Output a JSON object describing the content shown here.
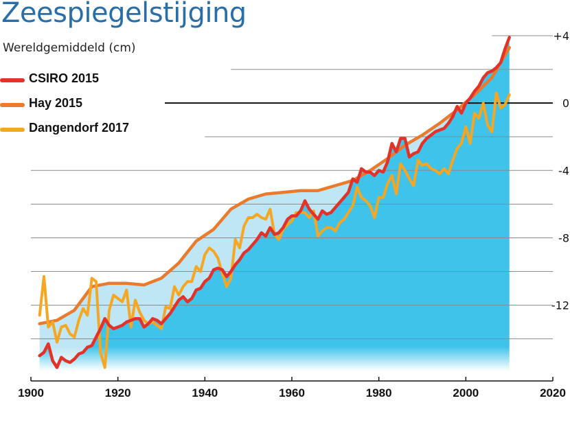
{
  "chart_data": {
    "type": "line",
    "title": "Zeespiegelstijging",
    "ylabel": "Wereldgemiddeld (cm)",
    "xlabel": "",
    "xlim": [
      1900,
      2020
    ],
    "ylim": [
      -16.5,
      4
    ],
    "x_ticks": [
      1900,
      1920,
      1940,
      1960,
      1980,
      2000,
      2020
    ],
    "x_tick_labels": [
      "1900",
      "1920",
      "1940",
      "1960",
      "1980",
      "2000",
      "2020"
    ],
    "y_ticks": [
      4,
      0,
      -4,
      -8,
      -12
    ],
    "y_tick_labels": [
      "+4",
      "0",
      "-4",
      "-8",
      "-12"
    ],
    "y_gridlines": [
      4,
      2,
      0,
      -2,
      -4,
      -6,
      -8,
      -10,
      -12,
      -14
    ],
    "colors": {
      "fill_light": "#bfe6f5",
      "fill_dark": "#3fc3ea",
      "zero_line": "#111111"
    },
    "series": [
      {
        "name": "CSIRO 2015",
        "color": "#e2332b",
        "x": [
          1902,
          1903,
          1904,
          1905,
          1906,
          1907,
          1908,
          1909,
          1910,
          1911,
          1912,
          1913,
          1914,
          1915,
          1916,
          1917,
          1918,
          1919,
          1920,
          1921,
          1922,
          1923,
          1924,
          1925,
          1926,
          1927,
          1928,
          1929,
          1930,
          1931,
          1932,
          1933,
          1934,
          1935,
          1936,
          1937,
          1938,
          1939,
          1940,
          1941,
          1942,
          1943,
          1944,
          1945,
          1946,
          1947,
          1948,
          1949,
          1950,
          1951,
          1952,
          1953,
          1954,
          1955,
          1956,
          1957,
          1958,
          1959,
          1960,
          1961,
          1962,
          1963,
          1964,
          1965,
          1966,
          1967,
          1968,
          1969,
          1970,
          1971,
          1972,
          1973,
          1974,
          1975,
          1976,
          1977,
          1978,
          1979,
          1980,
          1981,
          1982,
          1983,
          1984,
          1985,
          1986,
          1987,
          1988,
          1989,
          1990,
          1991,
          1992,
          1993,
          1994,
          1995,
          1996,
          1997,
          1998,
          1999,
          2000,
          2001,
          2002,
          2003,
          2004,
          2005,
          2006,
          2007,
          2008,
          2009,
          2010
        ],
        "values": [
          -15,
          -14.8,
          -14.3,
          -15.3,
          -15.7,
          -15.1,
          -15.3,
          -15.4,
          -15.2,
          -14.9,
          -14.8,
          -14.5,
          -14.4,
          -13.9,
          -13.4,
          -12.8,
          -13.2,
          -13.4,
          -13.3,
          -13.2,
          -13.0,
          -12.9,
          -12.8,
          -12.8,
          -13.3,
          -13.1,
          -12.8,
          -12.9,
          -13.1,
          -12.8,
          -12.5,
          -12.1,
          -11.7,
          -11.5,
          -11.8,
          -11.6,
          -11.1,
          -11.0,
          -10.6,
          -10.4,
          -9.9,
          -9.8,
          -9.9,
          -10.3,
          -10.0,
          -9.6,
          -9.3,
          -8.9,
          -8.7,
          -8.4,
          -8.1,
          -7.7,
          -7.9,
          -7.4,
          -7.8,
          -7.7,
          -7.4,
          -6.9,
          -6.7,
          -6.7,
          -6.4,
          -5.8,
          -6.3,
          -6.6,
          -6.9,
          -6.4,
          -6.6,
          -6.5,
          -6.2,
          -5.9,
          -5.6,
          -5.3,
          -4.5,
          -4.7,
          -3.9,
          -4.1,
          -4.1,
          -4.3,
          -4.0,
          -4.1,
          -3.5,
          -2.4,
          -2.9,
          -2.1,
          -2.1,
          -3.2,
          -3.0,
          -2.9,
          -2.4,
          -2.1,
          -1.9,
          -1.7,
          -1.6,
          -1.5,
          -1.2,
          -0.8,
          -0.2,
          -0.6,
          0.0,
          0.3,
          0.7,
          1.0,
          1.5,
          1.8,
          1.9,
          2.1,
          2.4,
          3.2,
          3.9
        ]
      },
      {
        "name": "Hay 2015",
        "color": "#ea7a2c",
        "x": [
          1902,
          1906,
          1910,
          1914,
          1918,
          1922,
          1926,
          1930,
          1934,
          1938,
          1942,
          1946,
          1950,
          1954,
          1958,
          1962,
          1966,
          1970,
          1974,
          1978,
          1982,
          1986,
          1990,
          1994,
          1998,
          2002,
          2006,
          2010
        ],
        "values": [
          -13.1,
          -12.9,
          -12.3,
          -10.9,
          -10.7,
          -10.7,
          -10.8,
          -10.4,
          -9.5,
          -8.2,
          -7.5,
          -6.3,
          -5.7,
          -5.4,
          -5.3,
          -5.2,
          -5.2,
          -4.9,
          -4.6,
          -4.0,
          -3.3,
          -2.5,
          -1.9,
          -1.2,
          -0.4,
          0.5,
          1.5,
          3.3
        ]
      },
      {
        "name": "Dangendorf 2017",
        "color": "#f5a623",
        "x": [
          1902,
          1903,
          1904,
          1905,
          1906,
          1907,
          1908,
          1909,
          1910,
          1911,
          1912,
          1913,
          1914,
          1915,
          1916,
          1917,
          1918,
          1919,
          1920,
          1921,
          1922,
          1923,
          1924,
          1925,
          1926,
          1927,
          1928,
          1929,
          1930,
          1931,
          1932,
          1933,
          1934,
          1935,
          1936,
          1937,
          1938,
          1939,
          1940,
          1941,
          1942,
          1943,
          1944,
          1945,
          1946,
          1947,
          1948,
          1949,
          1950,
          1951,
          1952,
          1953,
          1954,
          1955,
          1956,
          1957,
          1958,
          1959,
          1960,
          1961,
          1962,
          1963,
          1964,
          1965,
          1966,
          1967,
          1968,
          1969,
          1970,
          1971,
          1972,
          1973,
          1974,
          1975,
          1976,
          1977,
          1978,
          1979,
          1980,
          1981,
          1982,
          1983,
          1984,
          1985,
          1986,
          1987,
          1988,
          1989,
          1990,
          1991,
          1992,
          1993,
          1994,
          1995,
          1996,
          1997,
          1998,
          1999,
          2000,
          2001,
          2002,
          2003,
          2004,
          2005,
          2006,
          2007,
          2008,
          2009,
          2010
        ],
        "values": [
          -12.6,
          -10.3,
          -13.3,
          -13.0,
          -14.2,
          -13.3,
          -13.2,
          -13.7,
          -13.9,
          -12.9,
          -12.2,
          -12.6,
          -10.4,
          -10.6,
          -14.8,
          -15.7,
          -12.3,
          -11.4,
          -11.6,
          -11.8,
          -11.1,
          -13.3,
          -11.7,
          -12.4,
          -12.9,
          -13.1,
          -13.0,
          -13.2,
          -13.4,
          -12.1,
          -12.2,
          -10.9,
          -11.4,
          -10.9,
          -10.6,
          -10.6,
          -9.7,
          -10.0,
          -9.0,
          -8.6,
          -8.8,
          -9.2,
          -10.1,
          -10.9,
          -10.4,
          -8.1,
          -8.6,
          -7.3,
          -6.8,
          -6.8,
          -6.6,
          -6.8,
          -6.9,
          -6.3,
          -7.8,
          -8.1,
          -7.5,
          -7.2,
          -7.0,
          -6.5,
          -6.5,
          -6.5,
          -6.8,
          -6.4,
          -7.9,
          -7.6,
          -7.4,
          -7.4,
          -7.6,
          -7.1,
          -6.9,
          -6.5,
          -6.1,
          -5.0,
          -5.6,
          -5.8,
          -6.1,
          -6.8,
          -5.6,
          -5.6,
          -4.8,
          -4.3,
          -5.4,
          -3.6,
          -4.0,
          -4.5,
          -4.9,
          -3.4,
          -3.7,
          -3.6,
          -3.9,
          -4.0,
          -4.2,
          -3.9,
          -4.2,
          -3.4,
          -2.7,
          -2.4,
          -1.4,
          -2.4,
          -0.6,
          -0.9,
          0.0,
          -1.3,
          -1.7,
          0.6,
          -0.3,
          -0.1,
          0.5
        ]
      }
    ]
  }
}
